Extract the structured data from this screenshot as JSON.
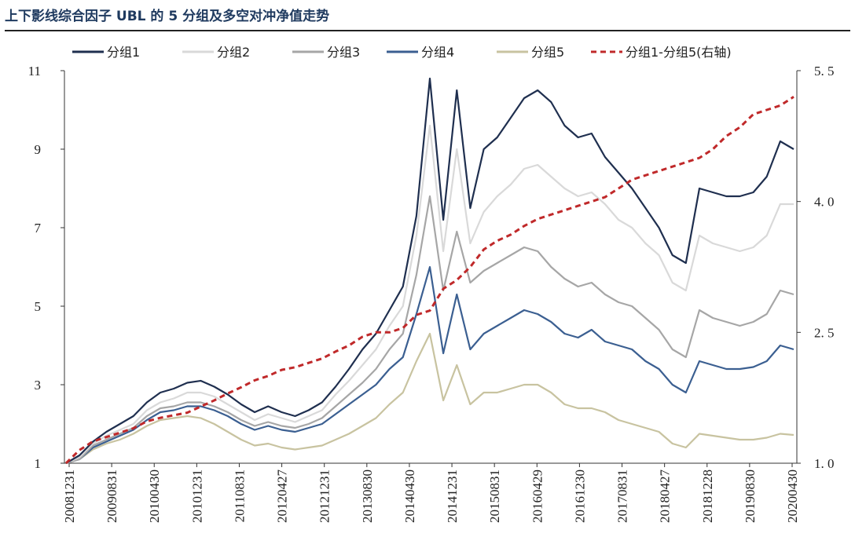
{
  "chart_data": {
    "type": "line",
    "title": "上下影线综合因子 UBL 的 5 分组及多空对冲净值走势",
    "xlabel": "",
    "ylabel": "",
    "ylim": [
      1,
      11
    ],
    "y2lim": [
      1.0,
      5.5
    ],
    "yticks": [
      "1",
      "3",
      "5",
      "7",
      "9",
      "11"
    ],
    "y2ticks": [
      "1. 0",
      "2. 5",
      "4. 0",
      "5. 5"
    ],
    "xticks": [
      "20081231",
      "20090831",
      "20100430",
      "20101231",
      "20110831",
      "20120427",
      "20121231",
      "20130830",
      "20140430",
      "20141231",
      "20150831",
      "20160429",
      "20161230",
      "20170831",
      "20180427",
      "20181228",
      "20190830",
      "20200430"
    ],
    "series": [
      {
        "name": "分组1",
        "color": "#1f2f4f",
        "dash": "none",
        "axis": "left",
        "values": [
          1.0,
          1.2,
          1.55,
          1.8,
          2.0,
          2.2,
          2.55,
          2.8,
          2.9,
          3.05,
          3.1,
          2.95,
          2.75,
          2.5,
          2.3,
          2.45,
          2.3,
          2.2,
          2.35,
          2.55,
          2.95,
          3.4,
          3.9,
          4.3,
          4.9,
          5.5,
          7.3,
          10.8,
          7.2,
          10.5,
          7.5,
          9.0,
          9.3,
          9.8,
          10.3,
          10.5,
          10.2,
          9.6,
          9.3,
          9.4,
          8.8,
          8.4,
          8.0,
          7.5,
          7.0,
          6.3,
          6.1,
          8.0,
          7.9,
          7.8,
          7.8,
          7.9,
          8.3,
          9.2,
          9.0
        ]
      },
      {
        "name": "分组2",
        "color": "#d9d9d9",
        "dash": "none",
        "axis": "left",
        "values": [
          1.0,
          1.15,
          1.5,
          1.7,
          1.85,
          2.0,
          2.35,
          2.55,
          2.65,
          2.8,
          2.8,
          2.7,
          2.5,
          2.3,
          2.1,
          2.25,
          2.15,
          2.05,
          2.2,
          2.35,
          2.75,
          3.1,
          3.5,
          3.9,
          4.5,
          5.0,
          6.8,
          9.6,
          6.4,
          9.0,
          6.6,
          7.4,
          7.8,
          8.1,
          8.5,
          8.6,
          8.3,
          8.0,
          7.8,
          7.9,
          7.6,
          7.2,
          7.0,
          6.6,
          6.3,
          5.6,
          5.4,
          6.8,
          6.6,
          6.5,
          6.4,
          6.5,
          6.8,
          7.6,
          7.6
        ]
      },
      {
        "name": "分组3",
        "color": "#a6a6a6",
        "dash": "none",
        "axis": "left",
        "values": [
          1.0,
          1.1,
          1.45,
          1.6,
          1.75,
          1.9,
          2.2,
          2.4,
          2.45,
          2.55,
          2.55,
          2.45,
          2.3,
          2.1,
          1.95,
          2.05,
          1.95,
          1.9,
          2.0,
          2.15,
          2.45,
          2.75,
          3.05,
          3.4,
          3.9,
          4.3,
          5.8,
          7.8,
          5.4,
          6.9,
          5.6,
          5.9,
          6.1,
          6.3,
          6.5,
          6.4,
          6.0,
          5.7,
          5.5,
          5.6,
          5.3,
          5.1,
          5.0,
          4.7,
          4.4,
          3.9,
          3.7,
          4.9,
          4.7,
          4.6,
          4.5,
          4.6,
          4.8,
          5.4,
          5.3
        ]
      },
      {
        "name": "分组4",
        "color": "#3b5f91",
        "dash": "none",
        "axis": "left",
        "values": [
          1.0,
          1.1,
          1.4,
          1.55,
          1.7,
          1.85,
          2.1,
          2.3,
          2.35,
          2.45,
          2.45,
          2.35,
          2.2,
          2.0,
          1.85,
          1.95,
          1.85,
          1.8,
          1.9,
          2.0,
          2.25,
          2.5,
          2.75,
          3.0,
          3.4,
          3.7,
          4.8,
          6.0,
          3.8,
          5.3,
          3.9,
          4.3,
          4.5,
          4.7,
          4.9,
          4.8,
          4.6,
          4.3,
          4.2,
          4.4,
          4.1,
          4.0,
          3.9,
          3.6,
          3.4,
          3.0,
          2.8,
          3.6,
          3.5,
          3.4,
          3.4,
          3.45,
          3.6,
          4.0,
          3.9
        ]
      },
      {
        "name": "分组5",
        "color": "#c8c3a0",
        "dash": "none",
        "axis": "left",
        "values": [
          1.0,
          1.1,
          1.35,
          1.5,
          1.6,
          1.75,
          1.95,
          2.1,
          2.15,
          2.2,
          2.15,
          2.0,
          1.8,
          1.6,
          1.45,
          1.5,
          1.4,
          1.35,
          1.4,
          1.45,
          1.6,
          1.75,
          1.95,
          2.15,
          2.5,
          2.8,
          3.6,
          4.3,
          2.6,
          3.5,
          2.5,
          2.8,
          2.8,
          2.9,
          3.0,
          3.0,
          2.8,
          2.5,
          2.4,
          2.4,
          2.3,
          2.1,
          2.0,
          1.9,
          1.8,
          1.5,
          1.4,
          1.75,
          1.7,
          1.65,
          1.6,
          1.6,
          1.65,
          1.75,
          1.72
        ]
      },
      {
        "name": "分组1-分组5(右轴)",
        "color": "#c0292a",
        "dash": "7,5",
        "axis": "right",
        "values": [
          1.0,
          1.15,
          1.25,
          1.3,
          1.35,
          1.4,
          1.48,
          1.52,
          1.55,
          1.58,
          1.65,
          1.72,
          1.8,
          1.87,
          1.95,
          2.0,
          2.07,
          2.1,
          2.15,
          2.2,
          2.28,
          2.35,
          2.45,
          2.5,
          2.5,
          2.55,
          2.7,
          2.75,
          3.0,
          3.1,
          3.25,
          3.45,
          3.55,
          3.62,
          3.72,
          3.8,
          3.85,
          3.9,
          3.95,
          4.0,
          4.05,
          4.15,
          4.25,
          4.3,
          4.35,
          4.4,
          4.45,
          4.5,
          4.6,
          4.75,
          4.85,
          5.0,
          5.05,
          5.1,
          5.2
        ]
      }
    ]
  }
}
